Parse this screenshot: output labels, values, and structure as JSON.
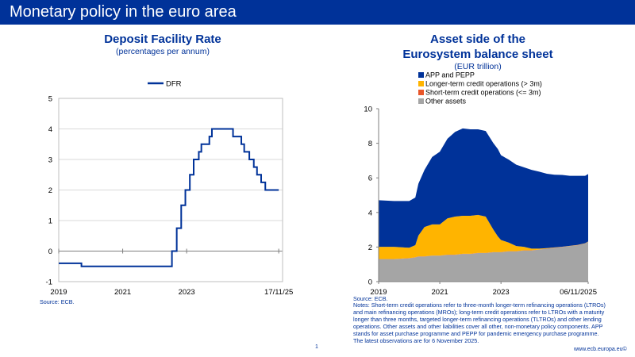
{
  "header": {
    "title": "Monetary policy in the euro area"
  },
  "left": {
    "title": "Deposit Facility Rate",
    "subtitle": "(percentages per annum)",
    "source": "Source: ECB."
  },
  "right": {
    "title_line1": "Asset side of the",
    "title_line2": "Eurosystem balance sheet",
    "subtitle": "(EUR trillion)",
    "source": "Source: ECB.",
    "notes": "Notes: Short-term credit operations refer to three-month longer-term refinancing operations (LTROs) and main refinancing operations (MROs); long-term credit operations refer to LTROs with a maturity longer than three months, targeted longer-term refinancing operations (TLTROs) and other lending operations. Other assets and other liabilities cover all other, non-monetary policy components. APP stands for asset purchase programme and PEPP for pandemic emergency purchase programme. The latest observations are for 6 November 2025."
  },
  "footer": {
    "page_number": "1",
    "site": "www.ecb.europa.eu©"
  },
  "chart_data": [
    {
      "type": "line",
      "title": "Deposit Facility Rate",
      "subtitle": "(percentages per annum)",
      "ylim": [
        -1,
        5
      ],
      "yticks": [
        "-1",
        "0",
        "1",
        "2",
        "3",
        "4",
        "5"
      ],
      "xlim": [
        2019,
        2026
      ],
      "xticks": [
        {
          "value": 2019,
          "label": "2019"
        },
        {
          "value": 2021,
          "label": "2021"
        },
        {
          "value": 2023,
          "label": "2023"
        },
        {
          "value": 2025.88,
          "label": "17/11/25"
        }
      ],
      "grid": true,
      "legend": "top-center",
      "color": "#003299",
      "series": [
        {
          "name": "DFR",
          "step_points": [
            [
              2019.0,
              -0.4
            ],
            [
              2019.71,
              -0.5
            ],
            [
              2022.54,
              0.0
            ],
            [
              2022.69,
              0.75
            ],
            [
              2022.83,
              1.5
            ],
            [
              2022.96,
              2.0
            ],
            [
              2023.1,
              2.5
            ],
            [
              2023.22,
              3.0
            ],
            [
              2023.38,
              3.25
            ],
            [
              2023.46,
              3.5
            ],
            [
              2023.71,
              3.75
            ],
            [
              2023.79,
              4.0
            ],
            [
              2024.45,
              3.75
            ],
            [
              2024.71,
              3.5
            ],
            [
              2024.8,
              3.25
            ],
            [
              2024.96,
              3.0
            ],
            [
              2025.1,
              2.75
            ],
            [
              2025.2,
              2.5
            ],
            [
              2025.33,
              2.25
            ],
            [
              2025.46,
              2.0
            ],
            [
              2025.88,
              2.0
            ]
          ]
        }
      ]
    },
    {
      "type": "area",
      "stacked": true,
      "title": "Asset side of the Eurosystem balance sheet",
      "subtitle": "(EUR trillion)",
      "ylim": [
        0,
        10
      ],
      "yticks": [
        "0",
        "2",
        "4",
        "6",
        "8",
        "10"
      ],
      "xlim": [
        2019,
        2025.85
      ],
      "xticks": [
        {
          "value": 2019,
          "label": "2019"
        },
        {
          "value": 2021,
          "label": "2021"
        },
        {
          "value": 2023,
          "label": "2023"
        },
        {
          "value": 2025.85,
          "label": "06/11/2025"
        }
      ],
      "legend": "top-left",
      "x": [
        2019.0,
        2019.5,
        2020.0,
        2020.2,
        2020.3,
        2020.5,
        2020.75,
        2021.0,
        2021.25,
        2021.5,
        2021.75,
        2022.0,
        2022.25,
        2022.5,
        2022.75,
        2022.9,
        2023.0,
        2023.25,
        2023.5,
        2023.75,
        2024.0,
        2024.25,
        2024.5,
        2024.75,
        2025.0,
        2025.25,
        2025.5,
        2025.75,
        2025.85
      ],
      "series": [
        {
          "name": "Other assets",
          "color": "#A5A5A5",
          "values": [
            1.3,
            1.3,
            1.35,
            1.4,
            1.45,
            1.45,
            1.5,
            1.5,
            1.55,
            1.55,
            1.6,
            1.6,
            1.65,
            1.65,
            1.7,
            1.7,
            1.7,
            1.75,
            1.75,
            1.8,
            1.8,
            1.85,
            1.9,
            1.95,
            2.0,
            2.05,
            2.1,
            2.2,
            2.3
          ]
        },
        {
          "name": "Short-term credit operations (<= 3m)",
          "color": "#E8562A",
          "values": [
            0.01,
            0.01,
            0.01,
            0.01,
            0.01,
            0.01,
            0.01,
            0.01,
            0.01,
            0.01,
            0.01,
            0.01,
            0.01,
            0.01,
            0.01,
            0.01,
            0.01,
            0.01,
            0.01,
            0.01,
            0.01,
            0.01,
            0.01,
            0.01,
            0.01,
            0.01,
            0.01,
            0.01,
            0.01
          ]
        },
        {
          "name": "Longer-term credit operations (> 3m)",
          "color": "#FFB400",
          "values": [
            0.7,
            0.7,
            0.6,
            0.7,
            1.2,
            1.7,
            1.8,
            1.8,
            2.1,
            2.2,
            2.2,
            2.2,
            2.2,
            2.1,
            1.3,
            0.9,
            0.7,
            0.5,
            0.3,
            0.2,
            0.1,
            0.05,
            0.03,
            0.02,
            0.01,
            0.01,
            0.01,
            0.01,
            0.01
          ]
        },
        {
          "name": "APP and PEPP",
          "color": "#003299",
          "values": [
            2.7,
            2.65,
            2.7,
            2.75,
            3.0,
            3.3,
            3.9,
            4.2,
            4.6,
            4.9,
            5.05,
            5.0,
            4.95,
            4.95,
            5.0,
            5.05,
            4.9,
            4.8,
            4.7,
            4.6,
            4.55,
            4.45,
            4.3,
            4.2,
            4.15,
            4.05,
            4.0,
            3.9,
            3.9
          ]
        }
      ]
    }
  ]
}
